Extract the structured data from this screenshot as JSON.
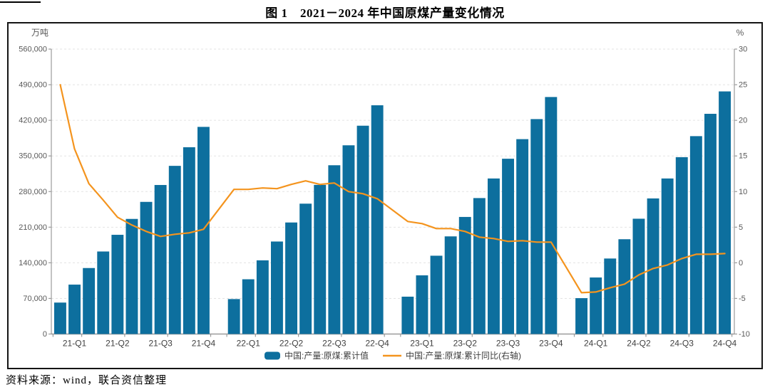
{
  "figure": {
    "title": "图 1　2021－2024 年中国原煤产量变化情况",
    "source_note": "资料来源：wind，联合资信整理"
  },
  "chart_data": {
    "type": "bar+line",
    "title": "2021-2024 年中国原煤产量变化情况",
    "grid": true,
    "legend_position": "bottom",
    "left_axis": {
      "unit": "万吨",
      "min": 0,
      "max": 560000,
      "tick_step": 70000,
      "tick_labels": [
        "0",
        "70,000",
        "140,000",
        "210,000",
        "280,000",
        "350,000",
        "420,000",
        "490,000",
        "560,000"
      ]
    },
    "right_axis": {
      "unit": "%",
      "min": -10,
      "max": 30,
      "tick_step": 5,
      "tick_labels": [
        "-10",
        "-5",
        "0",
        "5",
        "10",
        "15",
        "20",
        "25",
        "30"
      ]
    },
    "x_labels": [
      "21-Q1",
      "21-Q2",
      "21-Q3",
      "21-Q4",
      "22-Q1",
      "22-Q2",
      "22-Q3",
      "22-Q4",
      "23-Q1",
      "23-Q2",
      "23-Q3",
      "23-Q4",
      "24-Q1",
      "24-Q2",
      "24-Q3",
      "24-Q4"
    ],
    "legend": [
      {
        "label": "中国:产量:原煤:累计值",
        "type": "bar",
        "color": "#0d6f9e"
      },
      {
        "label": "中国:产量:原煤:累计同比(右轴)",
        "type": "line",
        "color": "#f4941e"
      }
    ],
    "series": {
      "bars_name": "中国:产量:原煤:累计值",
      "line_name": "中国:产量:原煤:累计同比(右轴)",
      "bars_per_year": 11,
      "years": [
        {
          "year": "2021",
          "cumulative_wandun": [
            61800,
            97100,
            129700,
            162200,
            195000,
            226200,
            259700,
            292900,
            330500,
            367100,
            407100
          ],
          "yoy_pct": [
            25.0,
            16.0,
            11.1,
            8.8,
            6.4,
            5.3,
            4.4,
            3.7,
            4.0,
            4.2,
            4.7
          ]
        },
        {
          "year": "2022",
          "cumulative_wandun": [
            68700,
            107600,
            144800,
            181800,
            219200,
            256200,
            293100,
            331700,
            370900,
            409400,
            449600
          ],
          "yoy_pct": [
            10.3,
            10.3,
            10.5,
            10.4,
            11.0,
            11.5,
            11.0,
            11.2,
            10.0,
            9.7,
            9.0
          ]
        },
        {
          "year": "2023",
          "cumulative_wandun": [
            73400,
            115300,
            153900,
            191900,
            230100,
            267200,
            305700,
            344500,
            383000,
            422400,
            465800
          ],
          "yoy_pct": [
            5.8,
            5.5,
            4.8,
            4.8,
            4.4,
            3.6,
            3.4,
            3.0,
            3.1,
            2.9,
            2.9
          ]
        },
        {
          "year": "2024",
          "cumulative_wandun": [
            70500,
            111100,
            148400,
            186300,
            226600,
            266500,
            305700,
            347600,
            388900,
            432800,
            476800
          ],
          "yoy_pct": [
            -4.2,
            -4.1,
            -3.5,
            -3.0,
            -1.7,
            -0.8,
            -0.3,
            0.6,
            1.2,
            1.2,
            1.3
          ]
        }
      ]
    },
    "colors": {
      "bar": "#0d6f9e",
      "line": "#f4941e",
      "grid": "#e3e3e3",
      "axis": "#9b9b9b",
      "tick_text": "#595959",
      "x_label_text": "#3f3f3f",
      "legend_text": "#3f3f3f",
      "frame": "#141414"
    }
  }
}
